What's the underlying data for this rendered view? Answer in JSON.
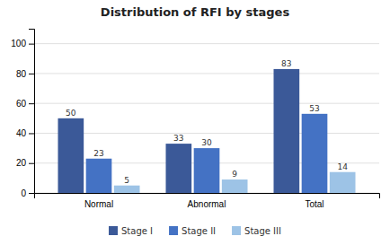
{
  "chart_data": {
    "type": "bar",
    "title": "Distribution of RFI by stages",
    "categories": [
      "Normal",
      "Abnormal",
      "Total"
    ],
    "series": [
      {
        "name": "Stage I",
        "color": "#3B5998",
        "values": [
          50,
          33,
          83
        ]
      },
      {
        "name": "Stage II",
        "color": "#4472C4",
        "values": [
          23,
          30,
          53
        ]
      },
      {
        "name": "Stage III",
        "color": "#9DC3E6",
        "values": [
          5,
          9,
          14
        ]
      }
    ],
    "ylim": [
      0,
      110
    ],
    "yticks": [
      0,
      20,
      40,
      60,
      80,
      100
    ],
    "grid": true,
    "data_labels": true,
    "legend": "bottom"
  }
}
